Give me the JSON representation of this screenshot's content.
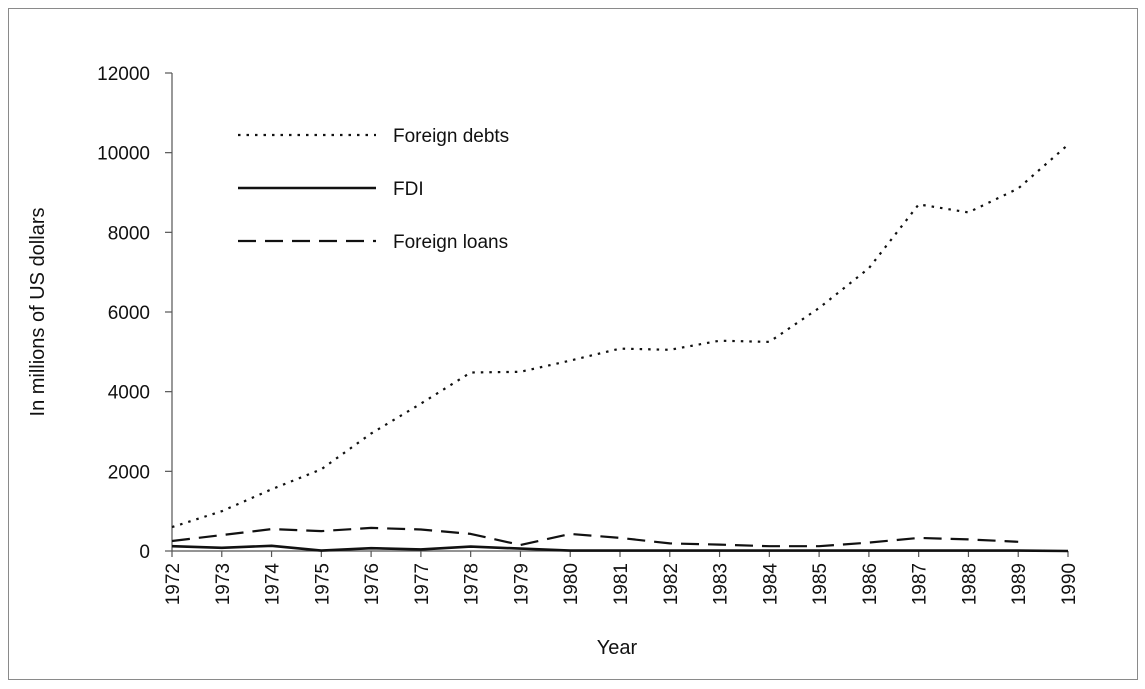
{
  "chart_data": {
    "type": "line",
    "title": "",
    "xlabel": "Year",
    "ylabel": "In millions of US dollars",
    "ylim": [
      0,
      12000
    ],
    "yticks": [
      0,
      2000,
      4000,
      6000,
      8000,
      10000,
      12000
    ],
    "x": [
      1972,
      1973,
      1974,
      1975,
      1976,
      1977,
      1978,
      1979,
      1980,
      1981,
      1982,
      1983,
      1984,
      1985,
      1986,
      1987,
      1988,
      1989,
      1990
    ],
    "legend_position": "top-left",
    "grid": false,
    "series": [
      {
        "name": "Foreign debts",
        "style": "dotted",
        "values": [
          600,
          1000,
          1550,
          2050,
          2950,
          3700,
          4480,
          4500,
          4780,
          5080,
          5050,
          5280,
          5250,
          6100,
          7100,
          8700,
          8500,
          9100,
          10200
        ]
      },
      {
        "name": "FDI",
        "style": "solid",
        "values": [
          120,
          80,
          130,
          10,
          70,
          40,
          110,
          60,
          10,
          10,
          10,
          10,
          10,
          10,
          10,
          10,
          10,
          10,
          0
        ]
      },
      {
        "name": "Foreign loans",
        "style": "dashed",
        "values": [
          250,
          400,
          550,
          500,
          580,
          540,
          430,
          150,
          430,
          330,
          190,
          160,
          120,
          120,
          210,
          330,
          290,
          230,
          null
        ]
      }
    ]
  }
}
